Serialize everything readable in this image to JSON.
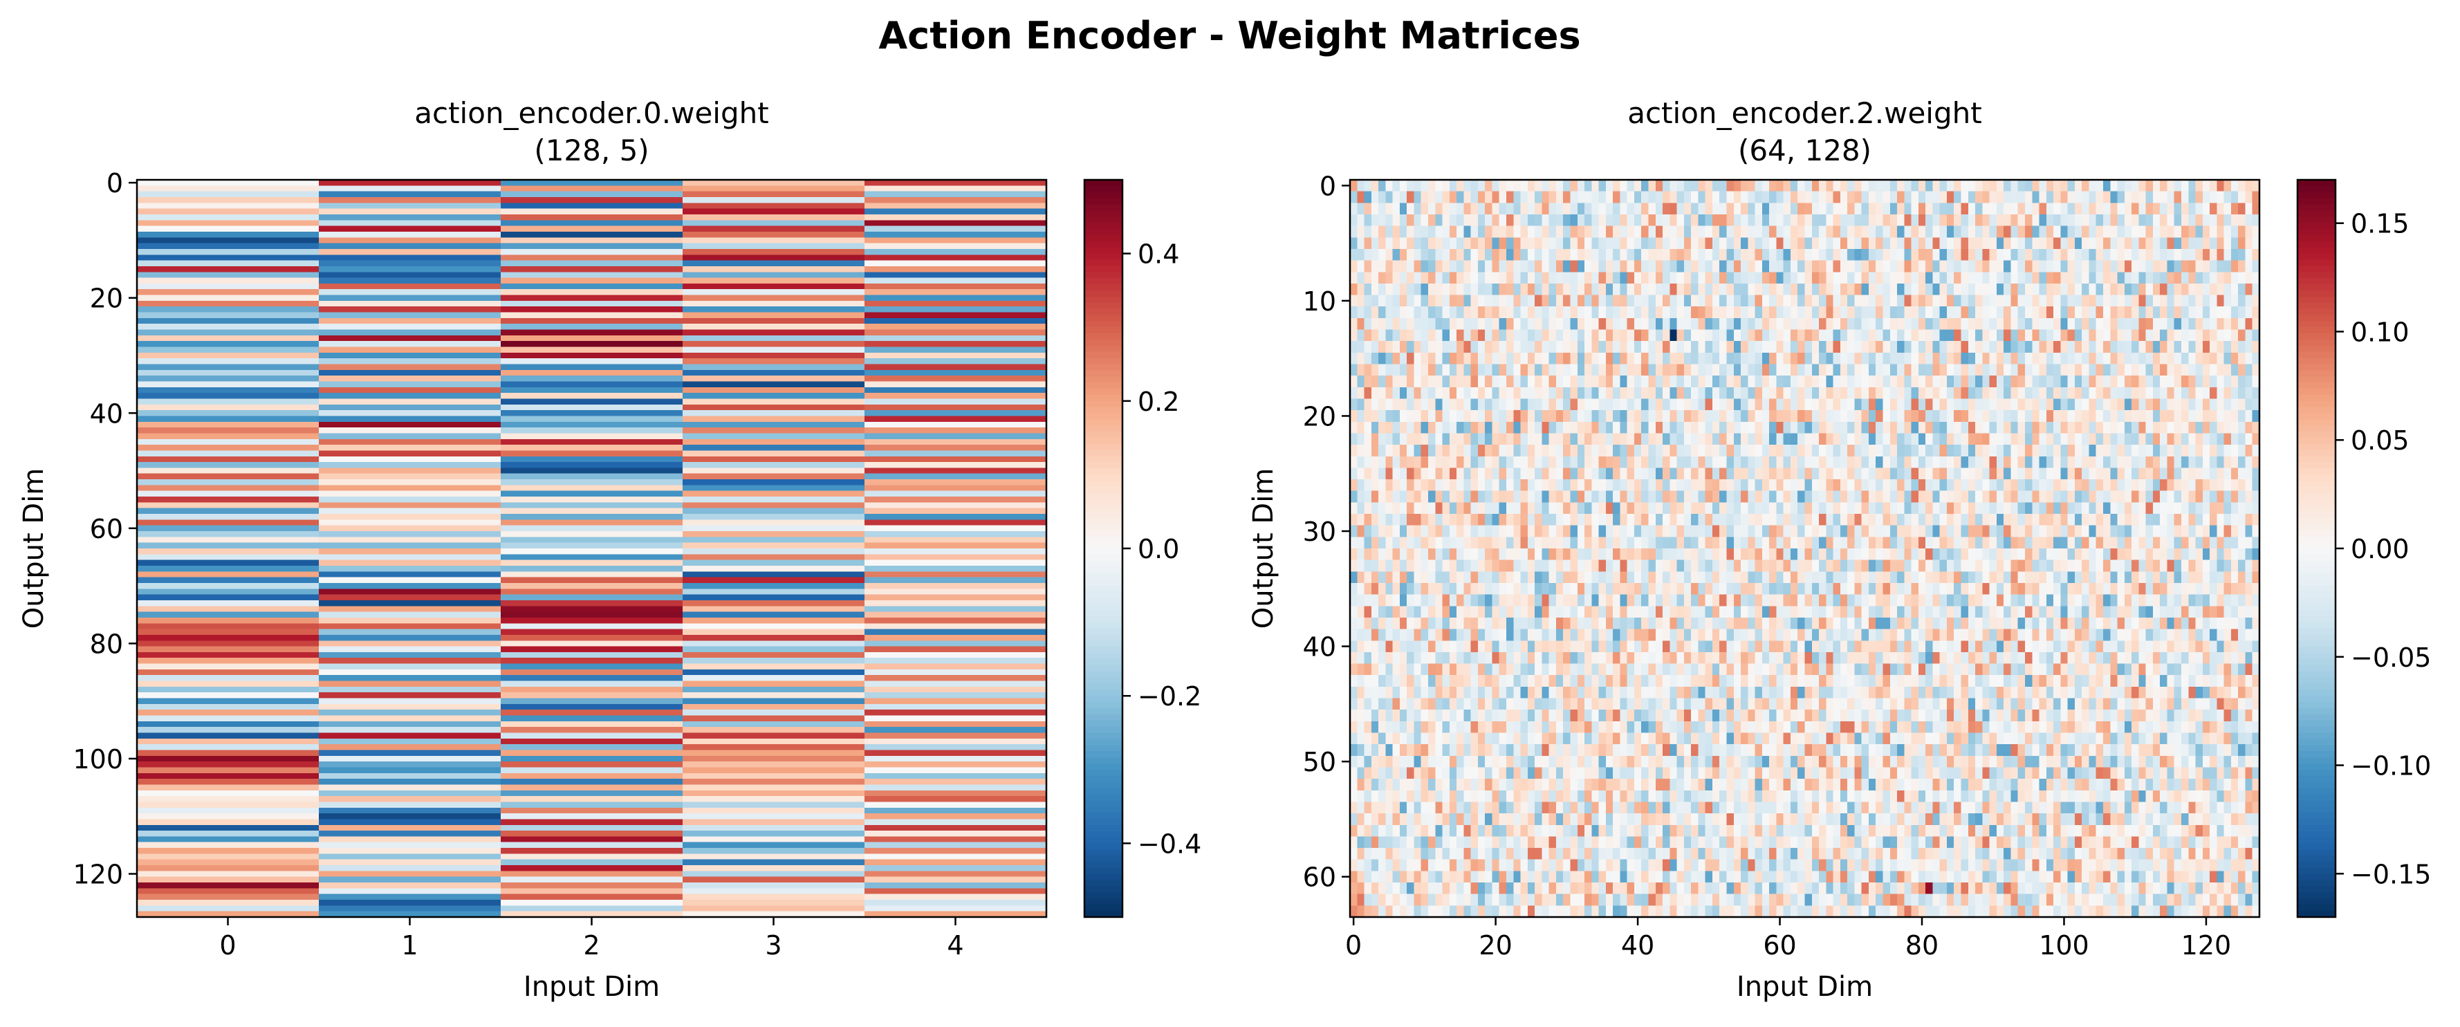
{
  "figure": {
    "suptitle": "Action Encoder - Weight Matrices"
  },
  "colormap": {
    "name": "RdBu_r",
    "stops": [
      "#053061",
      "#2166ac",
      "#4393c3",
      "#92c5de",
      "#d1e5f0",
      "#f7f7f7",
      "#fddbc7",
      "#f4a582",
      "#d6604d",
      "#b2182b",
      "#67001f"
    ]
  },
  "chart_data": [
    {
      "type": "heatmap",
      "title": "action_encoder.0.weight\n(128, 5)",
      "xlabel": "Input Dim",
      "ylabel": "Output Dim",
      "shape": [
        128,
        5
      ],
      "xlim": [
        -0.5,
        4.5
      ],
      "ylim": [
        127.5,
        -0.5
      ],
      "xticks": [
        0,
        1,
        2,
        3,
        4
      ],
      "xticklabels": [
        "0",
        "1",
        "2",
        "3",
        "4"
      ],
      "yticks": [
        0,
        20,
        40,
        60,
        80,
        100,
        120
      ],
      "yticklabels": [
        "0",
        "20",
        "40",
        "60",
        "80",
        "100",
        "120"
      ],
      "colorbar": {
        "vmin": -0.5,
        "vmax": 0.5,
        "ticks": [
          -0.4,
          -0.2,
          0.0,
          0.2,
          0.4
        ],
        "ticklabels": [
          "−0.4",
          "−0.2",
          "0.0",
          "0.2",
          "0.4"
        ]
      },
      "values": [
        [
          0.0,
          0.38,
          -0.3,
          0.14,
          0.35
        ],
        [
          0.05,
          -0.05,
          0.22,
          0.2,
          0.06
        ],
        [
          -0.1,
          -0.34,
          -0.22,
          0.28,
          -0.2
        ],
        [
          0.12,
          0.26,
          0.36,
          -0.08,
          0.25
        ],
        [
          0.02,
          -0.18,
          -0.4,
          0.33,
          0.15
        ],
        [
          0.15,
          0.1,
          0.05,
          0.4,
          -0.35
        ],
        [
          -0.08,
          -0.27,
          0.3,
          0.15,
          0.1
        ],
        [
          0.18,
          -0.12,
          -0.33,
          -0.2,
          0.44
        ],
        [
          0.0,
          0.4,
          0.18,
          0.36,
          -0.15
        ],
        [
          -0.32,
          -0.05,
          -0.45,
          0.28,
          -0.3
        ],
        [
          -0.45,
          0.22,
          0.12,
          0.1,
          0.2
        ],
        [
          -0.38,
          -0.32,
          -0.28,
          -0.14,
          0.04
        ],
        [
          -0.15,
          0.15,
          -0.05,
          0.3,
          -0.22
        ],
        [
          -0.4,
          -0.4,
          0.26,
          0.42,
          0.38
        ],
        [
          -0.12,
          -0.35,
          -0.2,
          -0.35,
          0.0
        ],
        [
          0.38,
          -0.3,
          0.35,
          0.12,
          0.22
        ],
        [
          -0.22,
          -0.42,
          -0.15,
          -0.25,
          -0.4
        ],
        [
          0.05,
          -0.36,
          0.2,
          0.18,
          -0.1
        ],
        [
          -0.05,
          0.3,
          -0.3,
          0.4,
          0.28
        ],
        [
          0.22,
          -0.1,
          0.1,
          -0.05,
          0.18
        ],
        [
          0.04,
          -0.28,
          0.38,
          0.25,
          -0.3
        ],
        [
          0.26,
          0.05,
          -0.12,
          0.05,
          0.3
        ],
        [
          -0.25,
          0.35,
          0.4,
          -0.3,
          -0.26
        ],
        [
          -0.18,
          -0.22,
          0.06,
          0.2,
          0.42
        ],
        [
          -0.32,
          0.18,
          0.32,
          0.32,
          -0.4
        ],
        [
          -0.1,
          -0.05,
          -0.22,
          0.08,
          0.2
        ],
        [
          -0.24,
          -0.25,
          0.45,
          0.38,
          0.26
        ],
        [
          0.12,
          0.42,
          0.2,
          -0.18,
          -0.15
        ],
        [
          -0.3,
          -0.08,
          0.48,
          0.3,
          0.34
        ],
        [
          -0.2,
          0.2,
          0.15,
          -0.05,
          -0.25
        ],
        [
          0.14,
          -0.3,
          0.42,
          0.35,
          0.1
        ],
        [
          -0.08,
          -0.15,
          -0.05,
          0.26,
          -0.2
        ],
        [
          -0.28,
          0.25,
          -0.32,
          -0.22,
          0.35
        ],
        [
          -0.14,
          -0.4,
          0.2,
          -0.38,
          -0.3
        ],
        [
          -0.26,
          0.15,
          -0.25,
          0.15,
          0.28
        ],
        [
          -0.05,
          -0.2,
          -0.38,
          -0.45,
          0.05
        ],
        [
          -0.34,
          0.3,
          -0.3,
          0.22,
          -0.35
        ],
        [
          -0.38,
          -0.3,
          0.1,
          -0.3,
          0.2
        ],
        [
          -0.12,
          0.08,
          -0.42,
          0.1,
          -0.1
        ],
        [
          0.08,
          -0.26,
          -0.1,
          0.32,
          0.3
        ],
        [
          -0.2,
          -0.1,
          -0.35,
          -0.1,
          -0.28
        ],
        [
          -0.3,
          -0.32,
          -0.2,
          0.18,
          0.38
        ],
        [
          0.18,
          0.44,
          -0.28,
          -0.28,
          0.0
        ],
        [
          0.26,
          0.02,
          -0.15,
          0.25,
          0.22
        ],
        [
          0.2,
          -0.22,
          0.05,
          -0.2,
          -0.25
        ],
        [
          -0.06,
          0.28,
          0.38,
          0.2,
          0.15
        ],
        [
          0.22,
          0.12,
          0.15,
          -0.35,
          0.25
        ],
        [
          -0.1,
          0.34,
          0.28,
          0.12,
          -0.18
        ],
        [
          0.32,
          0.0,
          -0.32,
          0.3,
          0.3
        ],
        [
          -0.22,
          -0.18,
          -0.4,
          -0.15,
          0.05
        ],
        [
          0.05,
          0.18,
          -0.45,
          0.05,
          0.36
        ],
        [
          0.3,
          0.12,
          -0.22,
          0.26,
          -0.25
        ],
        [
          -0.15,
          0.05,
          -0.15,
          -0.4,
          0.18
        ],
        [
          0.24,
          0.2,
          0.1,
          -0.3,
          0.22
        ],
        [
          -0.05,
          0.02,
          -0.3,
          0.2,
          -0.1
        ],
        [
          0.35,
          -0.12,
          0.05,
          -0.1,
          0.24
        ],
        [
          0.12,
          0.22,
          -0.2,
          0.25,
          0.05
        ],
        [
          -0.28,
          -0.05,
          0.08,
          -0.22,
          0.15
        ],
        [
          -0.1,
          0.1,
          -0.25,
          -0.15,
          -0.3
        ],
        [
          0.3,
          0.02,
          0.22,
          0.05,
          0.36
        ],
        [
          -0.26,
          0.12,
          -0.1,
          -0.05,
          0.0
        ],
        [
          -0.16,
          -0.18,
          0.02,
          0.18,
          -0.15
        ],
        [
          0.04,
          0.06,
          -0.2,
          -0.2,
          0.12
        ],
        [
          -0.22,
          -0.22,
          -0.15,
          0.12,
          0.2
        ],
        [
          0.12,
          0.18,
          0.0,
          -0.1,
          -0.05
        ],
        [
          -0.08,
          -0.08,
          -0.3,
          0.25,
          0.15
        ],
        [
          -0.42,
          0.15,
          0.1,
          -0.2,
          0.0
        ],
        [
          -0.3,
          -0.2,
          -0.22,
          0.02,
          -0.2
        ],
        [
          0.2,
          -0.38,
          0.05,
          -0.42,
          0.26
        ],
        [
          -0.35,
          0.0,
          0.3,
          0.38,
          -0.25
        ],
        [
          -0.12,
          -0.3,
          0.15,
          -0.3,
          0.12
        ],
        [
          -0.25,
          0.45,
          0.28,
          -0.15,
          0.05
        ],
        [
          -0.4,
          0.35,
          -0.25,
          -0.4,
          0.18
        ],
        [
          -0.05,
          -0.45,
          0.36,
          0.28,
          0.06
        ],
        [
          0.14,
          0.2,
          0.45,
          0.15,
          -0.2
        ],
        [
          -0.28,
          -0.1,
          0.46,
          -0.35,
          0.15
        ],
        [
          0.22,
          0.12,
          0.4,
          0.2,
          0.28
        ],
        [
          0.32,
          0.3,
          -0.05,
          0.0,
          0.06
        ],
        [
          0.3,
          -0.2,
          0.38,
          0.12,
          -0.35
        ],
        [
          0.4,
          -0.32,
          0.3,
          0.35,
          0.2
        ],
        [
          0.34,
          0.15,
          0.05,
          -0.1,
          -0.2
        ],
        [
          0.25,
          -0.05,
          0.4,
          -0.2,
          0.3
        ],
        [
          0.38,
          -0.28,
          -0.15,
          0.28,
          0.0
        ],
        [
          0.2,
          0.32,
          0.35,
          -0.15,
          -0.12
        ],
        [
          0.05,
          -0.12,
          -0.3,
          0.1,
          0.15
        ],
        [
          0.28,
          0.0,
          0.25,
          -0.4,
          -0.05
        ],
        [
          -0.1,
          -0.3,
          -0.35,
          -0.05,
          0.26
        ],
        [
          0.1,
          0.22,
          -0.1,
          0.2,
          -0.08
        ],
        [
          -0.2,
          -0.15,
          0.2,
          -0.25,
          0.12
        ],
        [
          0.0,
          0.36,
          0.15,
          0.05,
          -0.15
        ],
        [
          -0.3,
          -0.05,
          -0.25,
          -0.32,
          0.2
        ],
        [
          -0.12,
          0.08,
          -0.4,
          0.18,
          -0.1
        ],
        [
          0.2,
          -0.22,
          0.3,
          -0.1,
          0.35
        ],
        [
          -0.08,
          0.1,
          -0.3,
          0.3,
          0.0
        ],
        [
          -0.34,
          -0.25,
          0.1,
          -0.2,
          0.22
        ],
        [
          -0.15,
          -0.1,
          0.26,
          0.15,
          -0.3
        ],
        [
          -0.42,
          0.4,
          -0.1,
          0.35,
          0.25
        ],
        [
          0.15,
          -0.2,
          0.38,
          0.1,
          0.05
        ],
        [
          -0.1,
          0.22,
          -0.22,
          0.3,
          -0.15
        ],
        [
          0.3,
          -0.38,
          0.2,
          0.2,
          0.35
        ],
        [
          0.45,
          -0.05,
          -0.3,
          0.25,
          -0.05
        ],
        [
          0.38,
          -0.26,
          0.3,
          0.15,
          0.18
        ],
        [
          0.25,
          -0.3,
          -0.1,
          0.2,
          0.0
        ],
        [
          0.42,
          -0.15,
          0.2,
          0.12,
          -0.2
        ],
        [
          0.3,
          -0.32,
          -0.35,
          0.25,
          0.15
        ],
        [
          0.15,
          0.05,
          0.18,
          0.1,
          -0.1
        ],
        [
          0.0,
          -0.2,
          -0.28,
          0.18,
          0.25
        ],
        [
          0.05,
          0.15,
          0.1,
          0.05,
          0.3
        ],
        [
          0.08,
          -0.1,
          -0.2,
          -0.15,
          0.0
        ],
        [
          -0.05,
          -0.35,
          0.25,
          0.08,
          -0.25
        ],
        [
          0.02,
          -0.45,
          -0.05,
          -0.05,
          0.2
        ],
        [
          0.1,
          -0.4,
          0.38,
          0.15,
          -0.08
        ],
        [
          -0.42,
          0.18,
          -0.15,
          -0.1,
          0.35
        ],
        [
          -0.15,
          -0.35,
          0.3,
          -0.22,
          0.05
        ],
        [
          -0.3,
          0.1,
          0.42,
          0.02,
          0.3
        ],
        [
          0.05,
          -0.05,
          -0.1,
          -0.3,
          -0.15
        ],
        [
          0.2,
          0.05,
          0.35,
          -0.2,
          0.24
        ],
        [
          0.12,
          -0.2,
          0.05,
          0.05,
          0.0
        ],
        [
          0.18,
          0.08,
          -0.2,
          -0.35,
          0.2
        ],
        [
          0.22,
          -0.1,
          0.4,
          0.08,
          -0.18
        ],
        [
          0.05,
          0.2,
          0.22,
          -0.15,
          0.25
        ],
        [
          0.15,
          -0.25,
          -0.05,
          0.3,
          0.12
        ],
        [
          0.45,
          0.12,
          0.25,
          -0.1,
          -0.22
        ],
        [
          0.3,
          -0.05,
          0.15,
          -0.05,
          0.3
        ],
        [
          0.25,
          -0.3,
          0.3,
          0.1,
          0.05
        ],
        [
          0.08,
          -0.42,
          0.0,
          0.12,
          -0.1
        ],
        [
          -0.1,
          -0.35,
          -0.15,
          0.15,
          -0.05
        ],
        [
          0.2,
          -0.3,
          0.1,
          0.02,
          0.2
        ]
      ]
    },
    {
      "type": "heatmap",
      "title": "action_encoder.2.weight\n(64, 128)",
      "xlabel": "Input Dim",
      "ylabel": "Output Dim",
      "shape": [
        64,
        128
      ],
      "xlim": [
        -0.5,
        127.5
      ],
      "ylim": [
        63.5,
        -0.5
      ],
      "xticks": [
        0,
        20,
        40,
        60,
        80,
        100,
        120
      ],
      "xticklabels": [
        "0",
        "20",
        "40",
        "60",
        "80",
        "100",
        "120"
      ],
      "yticks": [
        0,
        10,
        20,
        30,
        40,
        50,
        60
      ],
      "yticklabels": [
        "0",
        "10",
        "20",
        "30",
        "40",
        "50",
        "60"
      ],
      "colorbar": {
        "vmin": -0.17,
        "vmax": 0.17,
        "ticks": [
          -0.15,
          -0.1,
          -0.05,
          0.0,
          0.05,
          0.1,
          0.15
        ],
        "ticklabels": [
          "−0.15",
          "−0.10",
          "−0.05",
          "0.00",
          "0.05",
          "0.10",
          "0.15"
        ]
      },
      "value_range": [
        -0.09,
        0.09
      ],
      "notable_cells": [
        {
          "row": 13,
          "col": 45,
          "value": -0.17
        },
        {
          "row": 61,
          "col": 81,
          "value": 0.15
        }
      ]
    }
  ]
}
